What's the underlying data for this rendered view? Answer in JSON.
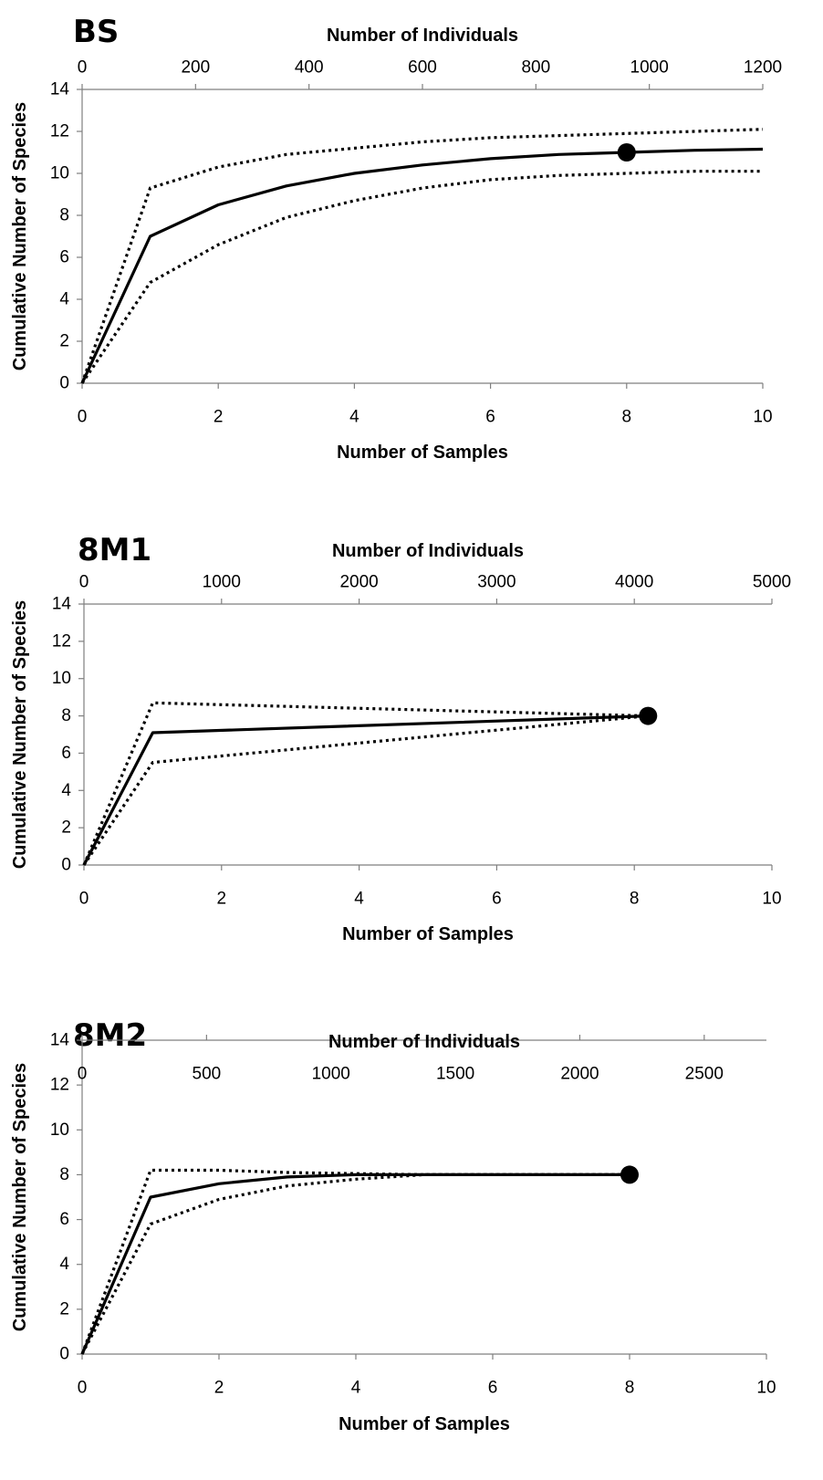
{
  "chart_data": [
    {
      "type": "line",
      "title": "BS",
      "xlabel": "Number of Samples",
      "x2label": "Number of Individuals",
      "ylabel": "Cumulative Number of Species",
      "xlim": [
        0,
        10
      ],
      "x2lim": [
        0,
        1200
      ],
      "ylim": [
        0,
        14
      ],
      "x_ticks": [
        "0",
        "2",
        "4",
        "6",
        "8",
        "10"
      ],
      "x2_ticks": [
        "0",
        "200",
        "400",
        "600",
        "800",
        "1000",
        "1200"
      ],
      "y_ticks": [
        "0",
        "2",
        "4",
        "6",
        "8",
        "10",
        "12",
        "14"
      ],
      "grid": false,
      "series": [
        {
          "role": "mean",
          "style": "solid",
          "x": [
            0,
            1,
            2,
            3,
            4,
            5,
            6,
            7,
            8,
            9,
            10
          ],
          "y": [
            0,
            7.0,
            8.5,
            9.4,
            10.0,
            10.4,
            10.7,
            10.9,
            11.0,
            11.1,
            11.15
          ]
        },
        {
          "role": "upper-ci",
          "style": "dotted",
          "x": [
            0,
            1,
            2,
            3,
            4,
            5,
            6,
            7,
            8,
            9,
            10
          ],
          "y": [
            0,
            9.3,
            10.3,
            10.9,
            11.2,
            11.5,
            11.7,
            11.8,
            11.9,
            12.0,
            12.1
          ]
        },
        {
          "role": "lower-ci",
          "style": "dotted",
          "x": [
            0,
            1,
            2,
            3,
            4,
            5,
            6,
            7,
            8,
            9,
            10
          ],
          "y": [
            0,
            4.8,
            6.6,
            7.9,
            8.7,
            9.3,
            9.7,
            9.9,
            10.0,
            10.1,
            10.1
          ]
        }
      ],
      "observed_point": {
        "x": 8,
        "y": 11.0
      }
    },
    {
      "type": "line",
      "title": "8M1",
      "xlabel": "Number of Samples",
      "x2label": "Number of Individuals",
      "ylabel": "Cumulative Number of Species",
      "xlim": [
        0,
        10
      ],
      "x2lim": [
        0,
        5000
      ],
      "ylim": [
        0,
        14
      ],
      "x_ticks": [
        "0",
        "2",
        "4",
        "6",
        "8",
        "10"
      ],
      "x2_ticks": [
        "0",
        "1000",
        "2000",
        "3000",
        "4000",
        "5000"
      ],
      "y_ticks": [
        "0",
        "2",
        "4",
        "6",
        "8",
        "10",
        "12",
        "14"
      ],
      "grid": false,
      "series": [
        {
          "role": "mean",
          "style": "solid",
          "x": [
            0,
            1,
            8.2
          ],
          "y": [
            0,
            7.1,
            8.0
          ]
        },
        {
          "role": "upper-ci",
          "style": "dotted",
          "x": [
            0,
            1,
            8.2
          ],
          "y": [
            0,
            8.7,
            8.0
          ]
        },
        {
          "role": "lower-ci",
          "style": "dotted",
          "x": [
            0,
            1,
            8.2
          ],
          "y": [
            0,
            5.5,
            8.0
          ]
        }
      ],
      "observed_point": {
        "x": 8.2,
        "y": 8.0
      }
    },
    {
      "type": "line",
      "title": "8M2",
      "xlabel": "Number of Samples",
      "x2label": "Number of Individuals",
      "ylabel": "Cumulative Number of Species",
      "xlim": [
        0,
        10
      ],
      "x2lim": [
        0,
        2750
      ],
      "ylim": [
        0,
        14
      ],
      "x_ticks": [
        "0",
        "2",
        "4",
        "6",
        "8",
        "10"
      ],
      "x2_ticks": [
        "0",
        "500",
        "1000",
        "1500",
        "2000",
        "2500"
      ],
      "x2_tick_values": [
        0,
        500,
        1000,
        1500,
        2000,
        2500
      ],
      "y_ticks": [
        "0",
        "2",
        "4",
        "6",
        "8",
        "10",
        "12",
        "14"
      ],
      "grid": false,
      "series": [
        {
          "role": "mean",
          "style": "solid",
          "x": [
            0,
            1,
            2,
            3,
            4,
            5,
            6,
            7,
            8
          ],
          "y": [
            0,
            7.0,
            7.6,
            7.9,
            8.0,
            8.0,
            8.0,
            8.0,
            8.0
          ]
        },
        {
          "role": "upper-ci",
          "style": "dotted",
          "x": [
            0,
            1,
            2,
            3,
            4,
            5,
            6,
            7,
            8
          ],
          "y": [
            0,
            8.2,
            8.2,
            8.1,
            8.05,
            8.0,
            8.0,
            8.0,
            8.0
          ]
        },
        {
          "role": "lower-ci",
          "style": "dotted",
          "x": [
            0,
            1,
            2,
            3,
            4,
            5,
            6,
            7,
            8
          ],
          "y": [
            0,
            5.8,
            6.9,
            7.5,
            7.8,
            8.0,
            8.0,
            8.0,
            8.0
          ]
        }
      ],
      "observed_point": {
        "x": 8,
        "y": 8.0
      }
    }
  ]
}
